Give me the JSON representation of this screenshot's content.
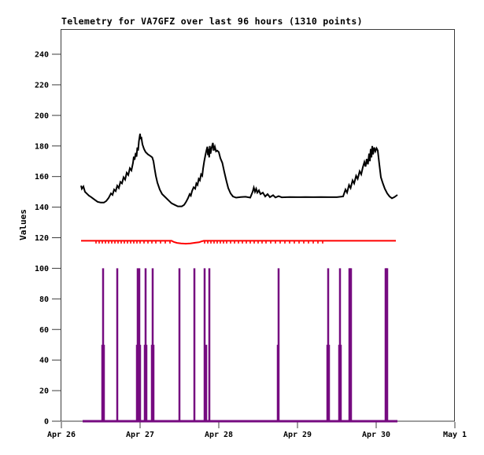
{
  "title": "Telemetry for VA7GFZ over last 96 hours (1310 points)",
  "chart_data": {
    "type": "line",
    "title": "Telemetry for VA7GFZ over last 96 hours (1310 points)",
    "xlabel": "",
    "ylabel": "Values",
    "ylim": [
      0,
      256
    ],
    "grid": false,
    "legend": "none",
    "yticks": [
      "0",
      "20",
      "40",
      "60",
      "80",
      "100",
      "120",
      "140",
      "160",
      "180",
      "200",
      "220",
      "240"
    ],
    "ytick_values": [
      0,
      20,
      40,
      60,
      80,
      100,
      120,
      140,
      160,
      180,
      200,
      220,
      240
    ],
    "xticks": [
      "Apr 26",
      "Apr 27",
      "Apr 28",
      "Apr 29",
      "Apr 30",
      "May 1"
    ],
    "x_unit": "days since Apr 26 00:00 (data spans ~96 hours: Apr 26.25 - Apr 30.27)",
    "frame_color": "#3c3c3c",
    "series": [
      {
        "name": "telemetry-channel-1-black",
        "type": "line",
        "color": "#000000",
        "points": [
          [
            0.25,
            154
          ],
          [
            0.26,
            152
          ],
          [
            0.28,
            153.5
          ],
          [
            0.3,
            150
          ],
          [
            0.32,
            149
          ],
          [
            0.35,
            147.5
          ],
          [
            0.38,
            146.5
          ],
          [
            0.42,
            145
          ],
          [
            0.46,
            143.5
          ],
          [
            0.5,
            143
          ],
          [
            0.54,
            143
          ],
          [
            0.57,
            144
          ],
          [
            0.6,
            146
          ],
          [
            0.63,
            149
          ],
          [
            0.65,
            148
          ],
          [
            0.67,
            151.5
          ],
          [
            0.69,
            150.5
          ],
          [
            0.71,
            154
          ],
          [
            0.73,
            152.5
          ],
          [
            0.75,
            156.5
          ],
          [
            0.77,
            155.5
          ],
          [
            0.79,
            159.5
          ],
          [
            0.81,
            158
          ],
          [
            0.83,
            162.5
          ],
          [
            0.85,
            161
          ],
          [
            0.87,
            165.5
          ],
          [
            0.89,
            164
          ],
          [
            0.91,
            169
          ],
          [
            0.92,
            173
          ],
          [
            0.93,
            171
          ],
          [
            0.945,
            175.5
          ],
          [
            0.955,
            173
          ],
          [
            0.965,
            179
          ],
          [
            0.975,
            177
          ],
          [
            0.985,
            183
          ],
          [
            1.0,
            188
          ],
          [
            1.005,
            184.5
          ],
          [
            1.015,
            186
          ],
          [
            1.03,
            181
          ],
          [
            1.05,
            178
          ],
          [
            1.07,
            176
          ],
          [
            1.1,
            174.5
          ],
          [
            1.13,
            173.5
          ],
          [
            1.155,
            172.5
          ],
          [
            1.17,
            170
          ],
          [
            1.185,
            165
          ],
          [
            1.2,
            160.5
          ],
          [
            1.22,
            156
          ],
          [
            1.25,
            151.5
          ],
          [
            1.28,
            148.5
          ],
          [
            1.32,
            146.5
          ],
          [
            1.36,
            144.5
          ],
          [
            1.4,
            142.5
          ],
          [
            1.44,
            141.5
          ],
          [
            1.48,
            140.5
          ],
          [
            1.53,
            140.5
          ],
          [
            1.56,
            141.5
          ],
          [
            1.585,
            143.5
          ],
          [
            1.61,
            146
          ],
          [
            1.63,
            148.5
          ],
          [
            1.645,
            147.5
          ],
          [
            1.66,
            150.5
          ],
          [
            1.68,
            153
          ],
          [
            1.7,
            152
          ],
          [
            1.715,
            155.5
          ],
          [
            1.73,
            154.5
          ],
          [
            1.745,
            158.5
          ],
          [
            1.76,
            157.5
          ],
          [
            1.775,
            161.5
          ],
          [
            1.79,
            160.5
          ],
          [
            1.8,
            165
          ],
          [
            1.815,
            170
          ],
          [
            1.83,
            174
          ],
          [
            1.845,
            177.5
          ],
          [
            1.855,
            179.5
          ],
          [
            1.862,
            174
          ],
          [
            1.87,
            178
          ],
          [
            1.878,
            172.5
          ],
          [
            1.886,
            180
          ],
          [
            1.895,
            175
          ],
          [
            1.91,
            179
          ],
          [
            1.925,
            182
          ],
          [
            1.935,
            177
          ],
          [
            1.95,
            179.5
          ],
          [
            1.965,
            176.5
          ],
          [
            1.98,
            177
          ],
          [
            2.0,
            176
          ],
          [
            2.02,
            172
          ],
          [
            2.045,
            169
          ],
          [
            2.07,
            163
          ],
          [
            2.095,
            157.5
          ],
          [
            2.12,
            152.5
          ],
          [
            2.15,
            149
          ],
          [
            2.18,
            147
          ],
          [
            2.22,
            146.2
          ],
          [
            2.28,
            146.6
          ],
          [
            2.34,
            146.8
          ],
          [
            2.4,
            146.2
          ],
          [
            2.43,
            150
          ],
          [
            2.445,
            152.8
          ],
          [
            2.46,
            150
          ],
          [
            2.475,
            152
          ],
          [
            2.49,
            149.5
          ],
          [
            2.51,
            151
          ],
          [
            2.53,
            148.5
          ],
          [
            2.56,
            149.5
          ],
          [
            2.59,
            147
          ],
          [
            2.62,
            148.5
          ],
          [
            2.65,
            146.5
          ],
          [
            2.69,
            147.8
          ],
          [
            2.72,
            146.3
          ],
          [
            2.76,
            147.2
          ],
          [
            2.8,
            146.4
          ],
          [
            2.9,
            146.6
          ],
          [
            3.0,
            146.5
          ],
          [
            3.1,
            146.6
          ],
          [
            3.2,
            146.5
          ],
          [
            3.3,
            146.6
          ],
          [
            3.4,
            146.5
          ],
          [
            3.5,
            146.5
          ],
          [
            3.58,
            147
          ],
          [
            3.61,
            151.5
          ],
          [
            3.63,
            149.5
          ],
          [
            3.655,
            154.5
          ],
          [
            3.675,
            152.5
          ],
          [
            3.7,
            157.5
          ],
          [
            3.72,
            155.5
          ],
          [
            3.745,
            160.5
          ],
          [
            3.765,
            158.5
          ],
          [
            3.79,
            163.5
          ],
          [
            3.81,
            161.5
          ],
          [
            3.83,
            166
          ],
          [
            3.85,
            169.5
          ],
          [
            3.865,
            166.5
          ],
          [
            3.88,
            171.5
          ],
          [
            3.895,
            168
          ],
          [
            3.91,
            175
          ],
          [
            3.92,
            170
          ],
          [
            3.93,
            178
          ],
          [
            3.94,
            172.5
          ],
          [
            3.95,
            180
          ],
          [
            3.96,
            174.5
          ],
          [
            3.975,
            179
          ],
          [
            3.99,
            176.5
          ],
          [
            4.005,
            178.5
          ],
          [
            4.02,
            177
          ],
          [
            4.04,
            168
          ],
          [
            4.06,
            159.5
          ],
          [
            4.085,
            155.5
          ],
          [
            4.11,
            152
          ],
          [
            4.14,
            149
          ],
          [
            4.17,
            147
          ],
          [
            4.2,
            145.8
          ],
          [
            4.23,
            146.5
          ],
          [
            4.27,
            148
          ]
        ]
      },
      {
        "name": "telemetry-channel-2-red",
        "type": "line",
        "color": "#ff0000",
        "points": [
          [
            0.25,
            118
          ],
          [
            1.4,
            118
          ],
          [
            1.43,
            117.2
          ],
          [
            1.47,
            116.6
          ],
          [
            1.52,
            116.3
          ],
          [
            1.58,
            116.1
          ],
          [
            1.64,
            116.3
          ],
          [
            1.7,
            116.7
          ],
          [
            1.75,
            117
          ],
          [
            1.78,
            117.6
          ],
          [
            1.81,
            118
          ],
          [
            4.25,
            118
          ]
        ],
        "downticks_value_drop": 1.8,
        "downticks": [
          0.44,
          0.48,
          0.52,
          0.56,
          0.6,
          0.64,
          0.68,
          0.72,
          0.76,
          0.8,
          0.84,
          0.88,
          0.92,
          0.96,
          1.0,
          1.05,
          1.1,
          1.15,
          1.2,
          1.26,
          1.32,
          1.38,
          1.82,
          1.86,
          1.9,
          1.94,
          1.98,
          2.02,
          2.06,
          2.1,
          2.15,
          2.2,
          2.25,
          2.3,
          2.35,
          2.4,
          2.45,
          2.5,
          2.55,
          2.6,
          2.66,
          2.72,
          2.78,
          2.84,
          2.9,
          2.96,
          3.02,
          3.08,
          3.14,
          3.2,
          3.26,
          3.32
        ]
      },
      {
        "name": "telemetry-channel-3-purple-impulses",
        "type": "impulse",
        "color": "#760b80",
        "baseline_value": 0,
        "baseline_span": [
          0.27,
          4.27
        ],
        "spikes": [
          [
            0.52,
            50
          ],
          [
            0.53,
            100
          ],
          [
            0.54,
            50
          ],
          [
            0.71,
            100
          ],
          [
            0.96,
            50
          ],
          [
            0.97,
            100
          ],
          [
            0.98,
            50
          ],
          [
            0.99,
            100
          ],
          [
            1.0,
            50
          ],
          [
            1.06,
            50
          ],
          [
            1.07,
            100
          ],
          [
            1.08,
            50
          ],
          [
            1.15,
            50
          ],
          [
            1.16,
            100
          ],
          [
            1.17,
            50
          ],
          [
            1.5,
            100
          ],
          [
            1.69,
            100
          ],
          [
            1.82,
            100
          ],
          [
            1.84,
            50
          ],
          [
            1.88,
            100
          ],
          [
            2.75,
            50
          ],
          [
            2.76,
            100
          ],
          [
            3.38,
            50
          ],
          [
            3.39,
            100
          ],
          [
            3.4,
            50
          ],
          [
            3.53,
            50
          ],
          [
            3.54,
            100
          ],
          [
            3.55,
            50
          ],
          [
            3.66,
            100
          ],
          [
            3.67,
            100
          ],
          [
            3.68,
            100
          ],
          [
            4.12,
            100
          ],
          [
            4.13,
            100
          ],
          [
            4.14,
            100
          ]
        ]
      }
    ]
  }
}
